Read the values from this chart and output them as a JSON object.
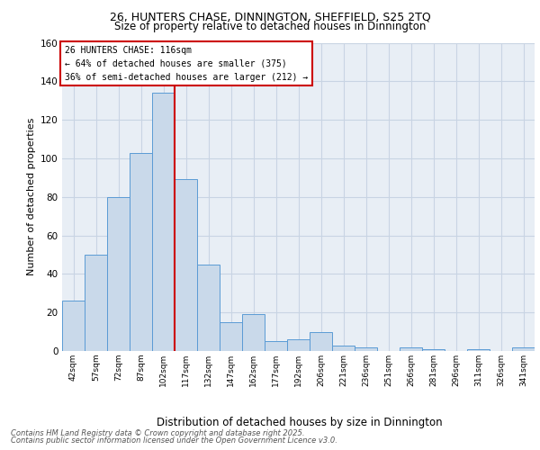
{
  "title1": "26, HUNTERS CHASE, DINNINGTON, SHEFFIELD, S25 2TQ",
  "title2": "Size of property relative to detached houses in Dinnington",
  "xlabel": "Distribution of detached houses by size in Dinnington",
  "ylabel": "Number of detached properties",
  "bin_labels": [
    "42sqm",
    "57sqm",
    "72sqm",
    "87sqm",
    "102sqm",
    "117sqm",
    "132sqm",
    "147sqm",
    "162sqm",
    "177sqm",
    "192sqm",
    "206sqm",
    "221sqm",
    "236sqm",
    "251sqm",
    "266sqm",
    "281sqm",
    "296sqm",
    "311sqm",
    "326sqm",
    "341sqm"
  ],
  "bar_heights": [
    26,
    50,
    80,
    103,
    134,
    89,
    45,
    15,
    19,
    5,
    6,
    10,
    3,
    2,
    0,
    2,
    1,
    0,
    1,
    0,
    2
  ],
  "bar_color": "#c9d9ea",
  "bar_edge_color": "#5b9bd5",
  "property_line_x": 4.5,
  "property_size": "116sqm",
  "property_name": "26 HUNTERS CHASE",
  "pct_smaller": 64,
  "n_smaller": 375,
  "pct_larger": 36,
  "n_larger": 212,
  "annotation_box_color": "#ffffff",
  "annotation_box_edge": "#cc0000",
  "line_color": "#cc0000",
  "ylim": [
    0,
    160
  ],
  "yticks": [
    0,
    20,
    40,
    60,
    80,
    100,
    120,
    140,
    160
  ],
  "grid_color": "#c8d4e3",
  "background_color": "#e8eef5",
  "footer1": "Contains HM Land Registry data © Crown copyright and database right 2025.",
  "footer2": "Contains public sector information licensed under the Open Government Licence v3.0."
}
